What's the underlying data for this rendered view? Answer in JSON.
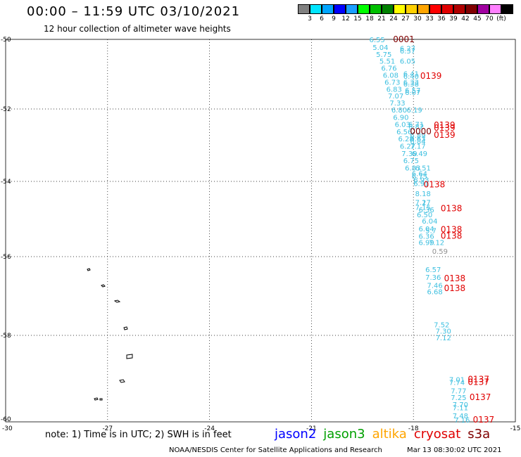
{
  "header": {
    "title": "00:00 – 11:59 UTC 03/10/2021",
    "subtitle": "12 hour collection of altimeter wave heights"
  },
  "color_scale": {
    "colors": [
      "#808080",
      "#00e5ff",
      "#00a5ff",
      "#0000ff",
      "#1a9eff",
      "#00ff00",
      "#00c000",
      "#008000",
      "#ffff00",
      "#ffd000",
      "#ffa500",
      "#ff0000",
      "#e00000",
      "#b00000",
      "#800000",
      "#a000a0",
      "#ff80ff",
      "#000000"
    ],
    "labels": [
      "3",
      "6",
      "9",
      "12",
      "15",
      "18",
      "21",
      "24",
      "27",
      "30",
      "33",
      "36",
      "39",
      "42",
      "45",
      "70",
      "(ft)"
    ]
  },
  "chart_data": {
    "type": "scatter",
    "xlim": [
      -30,
      -15
    ],
    "ylim": [
      -60,
      -50
    ],
    "x_ticks": [
      "-27",
      "-24",
      "-21",
      "-18",
      "-15"
    ],
    "y_ticks": [
      "-50",
      "-52",
      "-54",
      "-56",
      "-58",
      "-60"
    ],
    "x_origin_label": "-30",
    "grid": true,
    "wave_heights": [
      {
        "lon": -19.3,
        "lat": -50.0,
        "text": "6.55",
        "color": "#3fc0e0"
      },
      {
        "lon": -19.2,
        "lat": -50.22,
        "text": "5.04",
        "color": "#3fc0e0"
      },
      {
        "lon": -18.4,
        "lat": -50.25,
        "text": "6.27",
        "color": "#3fc0e0"
      },
      {
        "lon": -18.4,
        "lat": -50.32,
        "text": "6.37",
        "color": "#3fc0e0"
      },
      {
        "lon": -19.1,
        "lat": -50.42,
        "text": "5.75",
        "color": "#3fc0e0"
      },
      {
        "lon": -19.0,
        "lat": -50.62,
        "text": "5.51",
        "color": "#3fc0e0"
      },
      {
        "lon": -18.4,
        "lat": -50.62,
        "text": "6.05",
        "color": "#3fc0e0"
      },
      {
        "lon": -18.95,
        "lat": -50.82,
        "text": "6.76",
        "color": "#3fc0e0"
      },
      {
        "lon": -18.9,
        "lat": -51.02,
        "text": "6.08",
        "color": "#3fc0e0"
      },
      {
        "lon": -18.3,
        "lat": -50.98,
        "text": "6.41",
        "color": "#3fc0e0"
      },
      {
        "lon": -18.3,
        "lat": -51.05,
        "text": "6.40",
        "color": "#3fc0e0"
      },
      {
        "lon": -18.85,
        "lat": -51.22,
        "text": "6.73",
        "color": "#3fc0e0"
      },
      {
        "lon": -18.3,
        "lat": -51.22,
        "text": "6.33",
        "color": "#3fc0e0"
      },
      {
        "lon": -18.3,
        "lat": -51.27,
        "text": "6.38",
        "color": "#3fc0e0"
      },
      {
        "lon": -18.8,
        "lat": -51.42,
        "text": "6.83",
        "color": "#3fc0e0"
      },
      {
        "lon": -18.25,
        "lat": -51.45,
        "text": "6.57",
        "color": "#3fc0e0"
      },
      {
        "lon": -18.25,
        "lat": -51.52,
        "text": "6.07",
        "color": "#3fc0e0"
      },
      {
        "lon": -18.75,
        "lat": -51.62,
        "text": "7.07",
        "color": "#3fc0e0"
      },
      {
        "lon": -18.7,
        "lat": -51.82,
        "text": "7.33",
        "color": "#3fc0e0"
      },
      {
        "lon": -18.65,
        "lat": -52.02,
        "text": "6.80",
        "color": "#3fc0e0"
      },
      {
        "lon": -18.2,
        "lat": -52.02,
        "text": "6.19",
        "color": "#3fc0e0"
      },
      {
        "lon": -18.6,
        "lat": -52.22,
        "text": "6.90",
        "color": "#3fc0e0"
      },
      {
        "lon": -18.55,
        "lat": -52.42,
        "text": "6.03",
        "color": "#3fc0e0"
      },
      {
        "lon": -18.15,
        "lat": -52.42,
        "text": "6.71",
        "color": "#3fc0e0"
      },
      {
        "lon": -18.15,
        "lat": -52.48,
        "text": "6.82",
        "color": "#3fc0e0"
      },
      {
        "lon": -18.5,
        "lat": -52.62,
        "text": "6.56",
        "color": "#3fc0e0"
      },
      {
        "lon": -18.1,
        "lat": -52.72,
        "text": "6.89",
        "color": "#3fc0e0"
      },
      {
        "lon": -18.45,
        "lat": -52.82,
        "text": "6.28",
        "color": "#3fc0e0"
      },
      {
        "lon": -18.1,
        "lat": -52.82,
        "text": "6.63",
        "color": "#3fc0e0"
      },
      {
        "lon": -18.1,
        "lat": -52.88,
        "text": "6.84",
        "color": "#3fc0e0"
      },
      {
        "lon": -18.4,
        "lat": -53.02,
        "text": "6.27",
        "color": "#3fc0e0"
      },
      {
        "lon": -18.1,
        "lat": -53.02,
        "text": "7.17",
        "color": "#3fc0e0"
      },
      {
        "lon": -18.35,
        "lat": -53.22,
        "text": "7.39",
        "color": "#3fc0e0"
      },
      {
        "lon": -18.05,
        "lat": -53.22,
        "text": "6.49",
        "color": "#3fc0e0"
      },
      {
        "lon": -18.3,
        "lat": -53.42,
        "text": "6.75",
        "color": "#3fc0e0"
      },
      {
        "lon": -18.25,
        "lat": -53.62,
        "text": "6.83",
        "color": "#3fc0e0"
      },
      {
        "lon": -17.95,
        "lat": -53.62,
        "text": "6.51",
        "color": "#3fc0e0"
      },
      {
        "lon": -18.05,
        "lat": -53.78,
        "text": "6.64",
        "color": "#3fc0e0"
      },
      {
        "lon": -18.05,
        "lat": -53.85,
        "text": "6.75",
        "color": "#3fc0e0"
      },
      {
        "lon": -18.0,
        "lat": -53.95,
        "text": "6.93",
        "color": "#3fc0e0"
      },
      {
        "lon": -18.0,
        "lat": -54.05,
        "text": "6.91",
        "color": "#3fc0e0"
      },
      {
        "lon": -17.95,
        "lat": -54.32,
        "text": "8.18",
        "color": "#3fc0e0"
      },
      {
        "lon": -17.95,
        "lat": -54.55,
        "text": "7.27",
        "color": "#3fc0e0"
      },
      {
        "lon": -17.75,
        "lat": -54.55,
        "text": "1",
        "color": "#3fc0e0"
      },
      {
        "lon": -17.95,
        "lat": -54.68,
        "text": "7.15",
        "color": "#3fc0e0"
      },
      {
        "lon": -17.85,
        "lat": -54.75,
        "text": "6.36",
        "color": "#3fc0e0"
      },
      {
        "lon": -17.9,
        "lat": -54.88,
        "text": "6.50",
        "color": "#3fc0e0"
      },
      {
        "lon": -17.75,
        "lat": -55.05,
        "text": "6.04",
        "color": "#3fc0e0"
      },
      {
        "lon": -17.85,
        "lat": -55.25,
        "text": "6.04",
        "color": "#3fc0e0"
      },
      {
        "lon": -17.65,
        "lat": -55.3,
        "text": "5.7",
        "color": "#3fc0e0"
      },
      {
        "lon": -17.85,
        "lat": -55.45,
        "text": "6.36",
        "color": "#3fc0e0"
      },
      {
        "lon": -17.85,
        "lat": -55.62,
        "text": "6.99",
        "color": "#3fc0e0"
      },
      {
        "lon": -17.55,
        "lat": -55.62,
        "text": "7.12",
        "color": "#3fc0e0"
      },
      {
        "lon": -17.45,
        "lat": -55.85,
        "text": "0.59",
        "color": "#909090"
      },
      {
        "lon": -17.65,
        "lat": -56.32,
        "text": "6.57",
        "color": "#3fc0e0"
      },
      {
        "lon": -17.65,
        "lat": -56.52,
        "text": "7.36",
        "color": "#3fc0e0"
      },
      {
        "lon": -17.6,
        "lat": -56.72,
        "text": "7.46",
        "color": "#3fc0e0"
      },
      {
        "lon": -17.6,
        "lat": -56.88,
        "text": "6.68",
        "color": "#3fc0e0"
      },
      {
        "lon": -17.4,
        "lat": -57.72,
        "text": "7.52",
        "color": "#3fc0e0"
      },
      {
        "lon": -17.35,
        "lat": -57.88,
        "text": "7.30",
        "color": "#3fc0e0"
      },
      {
        "lon": -17.35,
        "lat": -58.05,
        "text": "7.12",
        "color": "#3fc0e0"
      },
      {
        "lon": -16.95,
        "lat": -59.05,
        "text": "7.01",
        "color": "#3fc0e0"
      },
      {
        "lon": -16.95,
        "lat": -59.12,
        "text": "7.74",
        "color": "#3fc0e0"
      },
      {
        "lon": -16.9,
        "lat": -59.32,
        "text": "7.77",
        "color": "#3fc0e0"
      },
      {
        "lon": -16.9,
        "lat": -59.48,
        "text": "7.25",
        "color": "#3fc0e0"
      },
      {
        "lon": -16.85,
        "lat": -59.65,
        "text": "7.70",
        "color": "#3fc0e0"
      },
      {
        "lon": -16.85,
        "lat": -59.72,
        "text": "7.11",
        "color": "#3fc0e0"
      },
      {
        "lon": -16.85,
        "lat": -59.92,
        "text": "7.48",
        "color": "#3fc0e0"
      },
      {
        "lon": -16.8,
        "lat": -60.02,
        "text": "7.16",
        "color": "#3fc0e0"
      }
    ],
    "pass_labels": [
      {
        "lon": -18.6,
        "lat": -50.0,
        "text": "0001",
        "color": "#800000"
      },
      {
        "lon": -17.8,
        "lat": -51.05,
        "text": "0139",
        "color": "#e00000"
      },
      {
        "lon": -17.4,
        "lat": -52.45,
        "text": "0139",
        "color": "#e00000"
      },
      {
        "lon": -17.4,
        "lat": -52.52,
        "text": "0139",
        "color": "#e00000"
      },
      {
        "lon": -17.4,
        "lat": -52.72,
        "text": "0139",
        "color": "#e00000"
      },
      {
        "lon": -18.1,
        "lat": -52.62,
        "text": "0000",
        "color": "#800000"
      },
      {
        "lon": -17.7,
        "lat": -54.08,
        "text": "0138",
        "color": "#e00000"
      },
      {
        "lon": -17.2,
        "lat": -54.72,
        "text": "0138",
        "color": "#e00000"
      },
      {
        "lon": -17.2,
        "lat": -55.28,
        "text": "0138",
        "color": "#e00000"
      },
      {
        "lon": -17.2,
        "lat": -55.45,
        "text": "0138",
        "color": "#e00000"
      },
      {
        "lon": -17.1,
        "lat": -56.55,
        "text": "0138",
        "color": "#e00000"
      },
      {
        "lon": -17.1,
        "lat": -56.8,
        "text": "0138",
        "color": "#e00000"
      },
      {
        "lon": -16.4,
        "lat": -59.05,
        "text": "0137",
        "color": "#e00000"
      },
      {
        "lon": -16.4,
        "lat": -59.12,
        "text": "0137",
        "color": "#e00000"
      },
      {
        "lon": -16.35,
        "lat": -59.48,
        "text": "0137",
        "color": "#e00000"
      },
      {
        "lon": -16.25,
        "lat": -60.02,
        "text": "0137",
        "color": "#e00000"
      }
    ]
  },
  "footer": {
    "note": "note: 1) Time is in UTC; 2) SWH is in feet",
    "satellites": [
      {
        "name": "jason2",
        "color": "#0000ff"
      },
      {
        "name": "jason3",
        "color": "#00a000"
      },
      {
        "name": "altika",
        "color": "#ffa500"
      },
      {
        "name": "cryosat",
        "color": "#e00000"
      },
      {
        "name": "s3a",
        "color": "#800000"
      }
    ],
    "credit": "NOAA/NESDIS Center for Satellite Applications and Research",
    "timestamp": "Mar 13 08:30:02 UTC 2021"
  }
}
